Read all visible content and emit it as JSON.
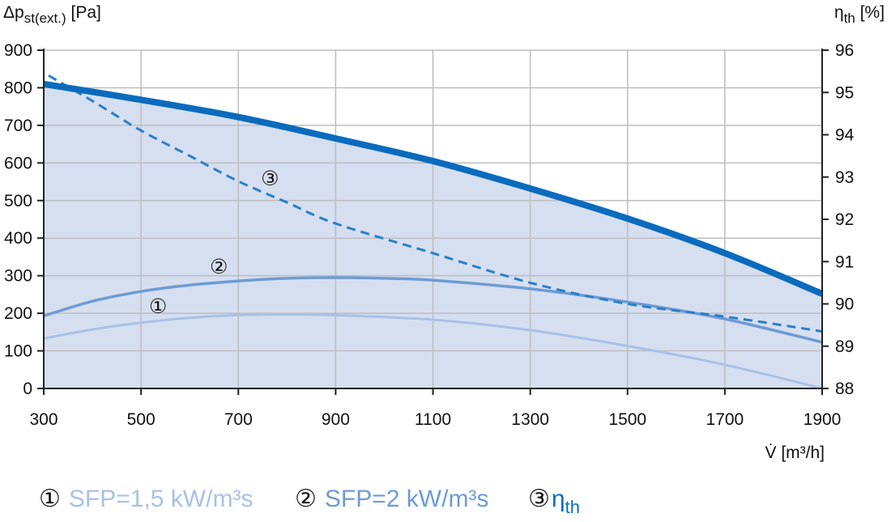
{
  "chart_data": {
    "type": "line",
    "x_label": "V̇ [m³/h]",
    "y_label_left": {
      "symbol": "Δp",
      "sub": "st(ext.)",
      "unit": " [Pa]"
    },
    "y_label_right": {
      "symbol": "η",
      "sub": "th",
      "unit": " [%]"
    },
    "xlim": [
      300,
      1900
    ],
    "ylim_left": [
      0,
      900
    ],
    "ylim_right": [
      88,
      96
    ],
    "x_ticks": [
      300,
      500,
      700,
      900,
      1100,
      1300,
      1500,
      1700,
      1900
    ],
    "y_ticks_left": [
      0,
      100,
      200,
      300,
      400,
      500,
      600,
      700,
      800,
      900
    ],
    "y_ticks_right": [
      88,
      89,
      90,
      91,
      92,
      93,
      94,
      95,
      96
    ],
    "grid": true,
    "colors": {
      "area_fill": "#d6dff0",
      "max_curve": "#0a6bbd",
      "sfp_1_5": "#a8c1e6",
      "sfp_2": "#6e9bd4",
      "eta": "#2a7fc8",
      "grid": "#bdbdbd"
    },
    "series": [
      {
        "key": "max",
        "axis": "left",
        "x": [
          300,
          500,
          700,
          900,
          1100,
          1300,
          1500,
          1700,
          1900
        ],
        "y": [
          810,
          768,
          722,
          665,
          605,
          532,
          452,
          360,
          252
        ]
      },
      {
        "key": "sfp2",
        "marker": "②",
        "axis": "left",
        "x": [
          300,
          400,
          500,
          600,
          700,
          800,
          900,
          1000,
          1100,
          1300,
          1500,
          1700,
          1900
        ],
        "y": [
          193,
          232,
          258,
          275,
          286,
          293,
          295,
          293,
          288,
          265,
          230,
          185,
          123
        ]
      },
      {
        "key": "sfp15",
        "marker": "①",
        "axis": "left",
        "x": [
          300,
          400,
          500,
          600,
          700,
          800,
          900,
          1100,
          1300,
          1500,
          1700,
          1900
        ],
        "y": [
          133,
          157,
          175,
          188,
          195,
          197,
          195,
          183,
          155,
          113,
          63,
          0
        ]
      },
      {
        "key": "eta",
        "marker": "③",
        "axis": "right",
        "x": [
          310,
          400,
          500,
          600,
          700,
          800,
          900,
          1100,
          1300,
          1500,
          1700,
          1900
        ],
        "y": [
          95.4,
          94.8,
          94.1,
          93.5,
          92.9,
          92.4,
          91.9,
          91.2,
          90.5,
          90.0,
          89.7,
          89.35
        ]
      }
    ],
    "curve_markers": [
      {
        "label": "③",
        "x": 765,
        "y": 560
      },
      {
        "label": "②",
        "x": 660,
        "y": 325
      },
      {
        "label": "①",
        "x": 535,
        "y": 220
      }
    ],
    "legend": [
      {
        "marker": "①",
        "text": "SFP=1,5 kW/m³s",
        "color": "#a8c1e6"
      },
      {
        "marker": "②",
        "text": "SFP=2 kW/m³s",
        "color": "#6e9bd4"
      },
      {
        "marker": "③",
        "symbol": "η",
        "sub": "th",
        "color": "#0a6bbd"
      }
    ]
  }
}
